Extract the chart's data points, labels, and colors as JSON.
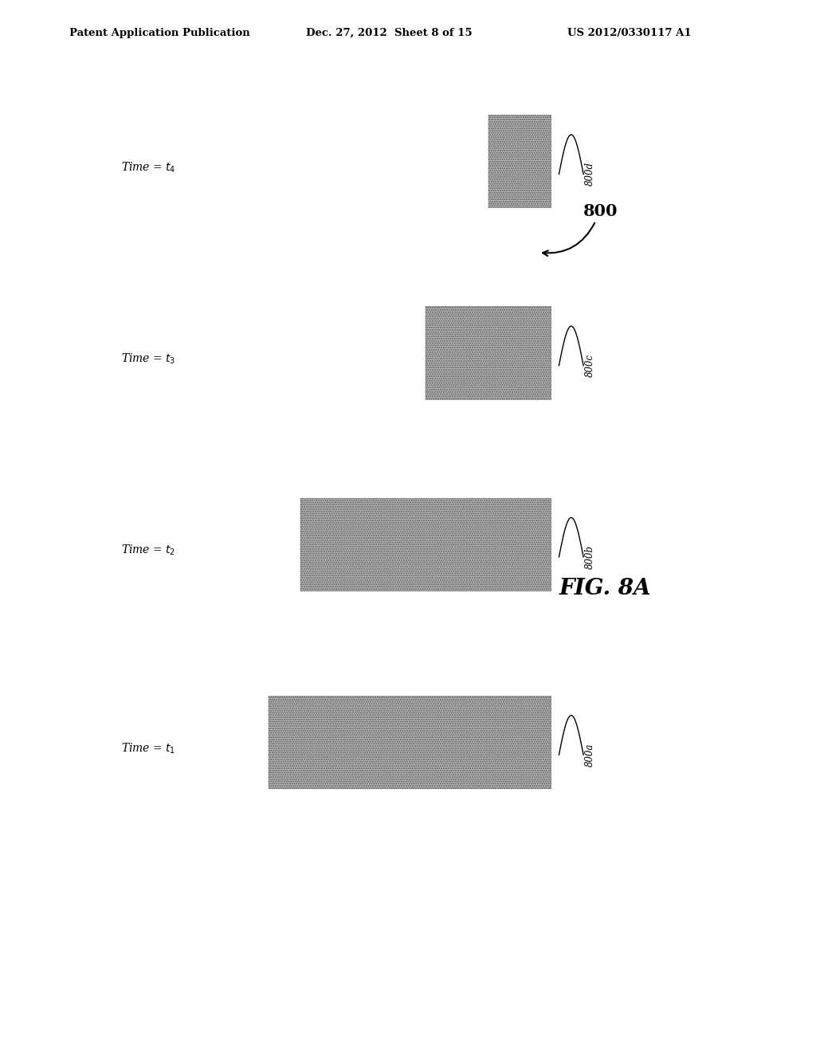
{
  "title_header": "Patent Application Publication",
  "date_header": "Dec. 27, 2012  Sheet 8 of 15",
  "patent_header": "US 2012/0330117 A1",
  "fig_label": "FIG. 8A",
  "main_label": "800",
  "panels": [
    {
      "time_label": "Time = t4",
      "time_sub": "4",
      "hdri_value": "0.2",
      "hdri_float": 0.2,
      "label": "800d"
    },
    {
      "time_label": "Time = t3",
      "time_sub": "3",
      "hdri_value": "0.4",
      "hdri_float": 0.4,
      "label": "800c"
    },
    {
      "time_label": "Time = t2",
      "time_sub": "2",
      "hdri_value": "0.8",
      "hdri_float": 0.8,
      "label": "800b"
    },
    {
      "time_label": "Time = t1",
      "time_sub": "1",
      "hdri_value": "0.9",
      "hdri_float": 0.9,
      "label": "800a"
    }
  ],
  "bg_color": "#000000",
  "white_bar_color": "#ffffff",
  "gray_bar_color": "#b8b8b8",
  "outer_bg": "#ffffff"
}
